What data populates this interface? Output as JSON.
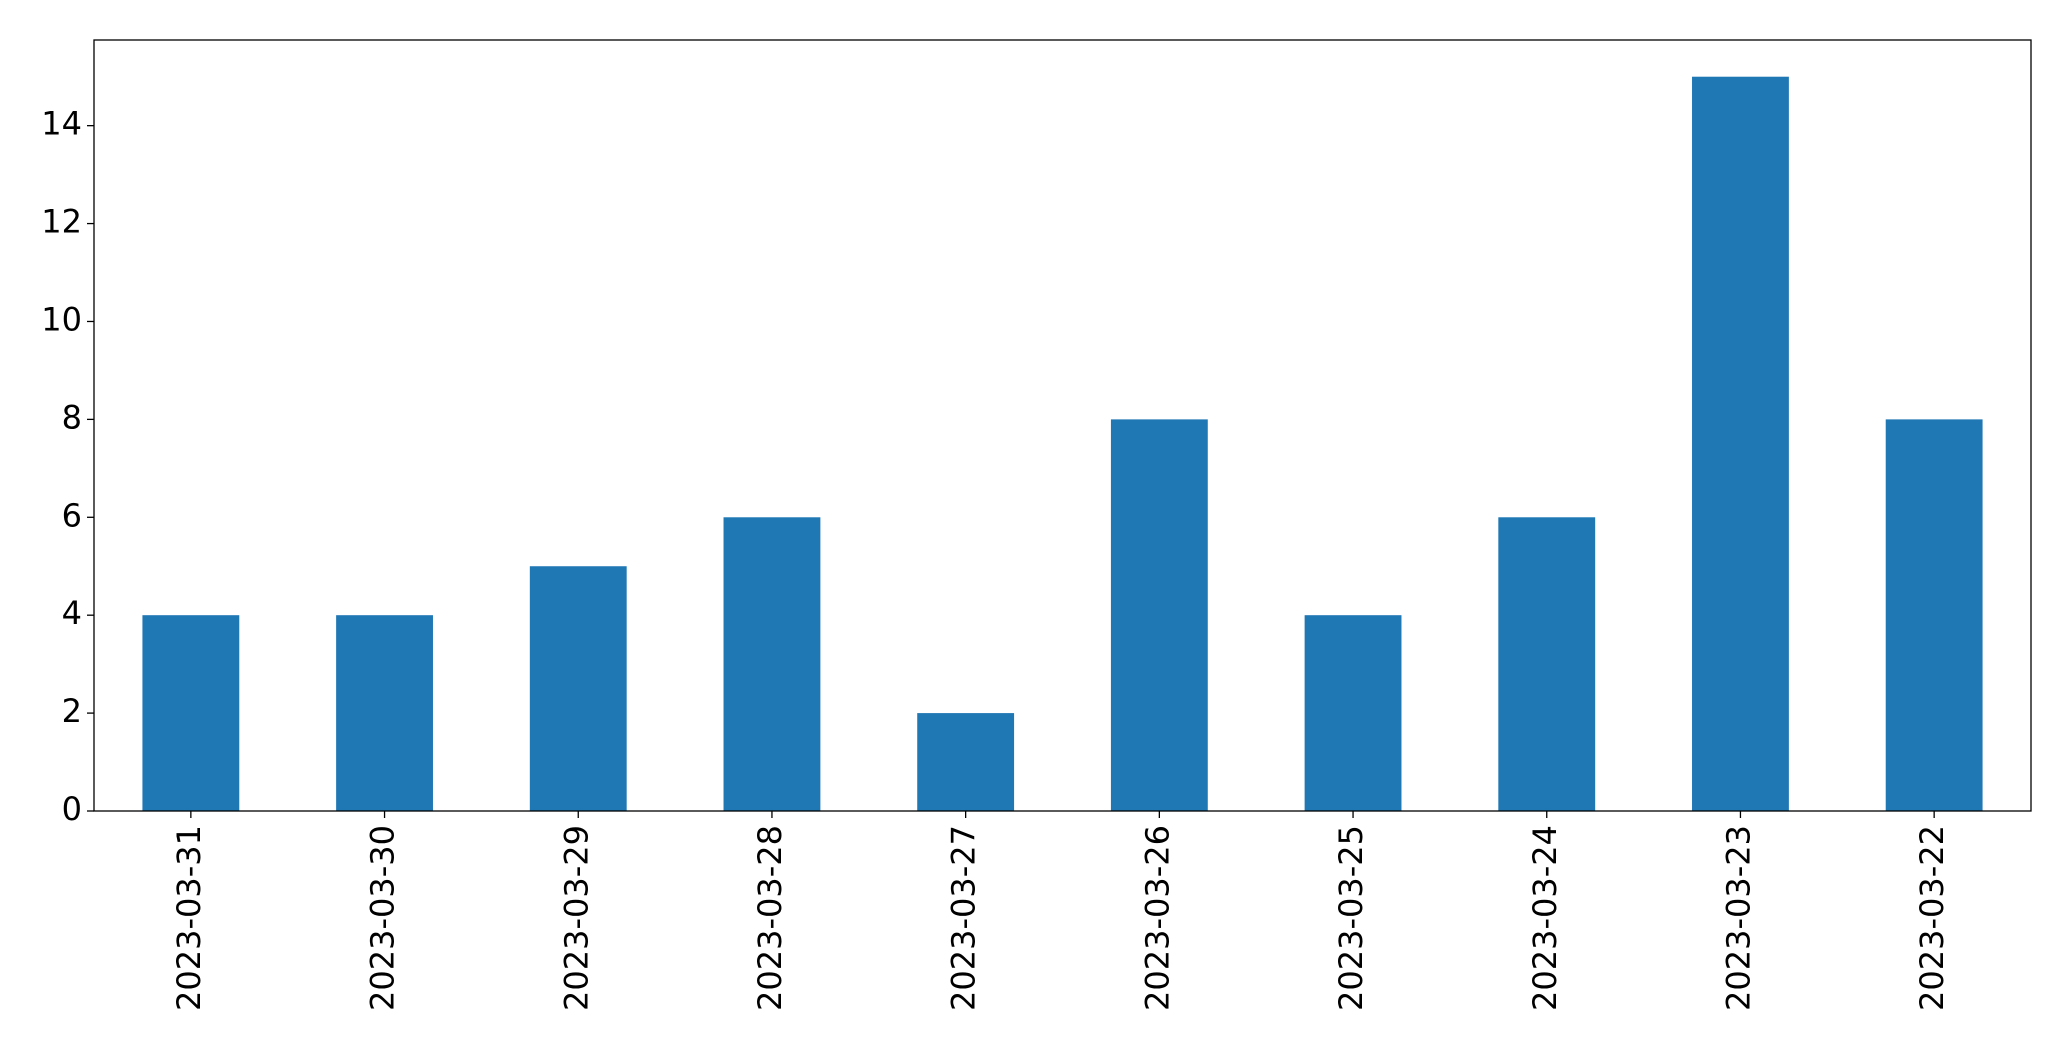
{
  "chart_data": {
    "type": "bar",
    "categories": [
      "2023-03-31",
      "2023-03-30",
      "2023-03-29",
      "2023-03-28",
      "2023-03-27",
      "2023-03-26",
      "2023-03-25",
      "2023-03-24",
      "2023-03-23",
      "2023-03-22"
    ],
    "values": [
      4,
      4,
      5,
      6,
      2,
      8,
      4,
      6,
      15,
      8
    ],
    "color": "#1f77b4",
    "ylim": [
      0,
      15.75
    ],
    "yticks": [
      0,
      2,
      4,
      6,
      8,
      10,
      12,
      14
    ],
    "grid": false
  }
}
